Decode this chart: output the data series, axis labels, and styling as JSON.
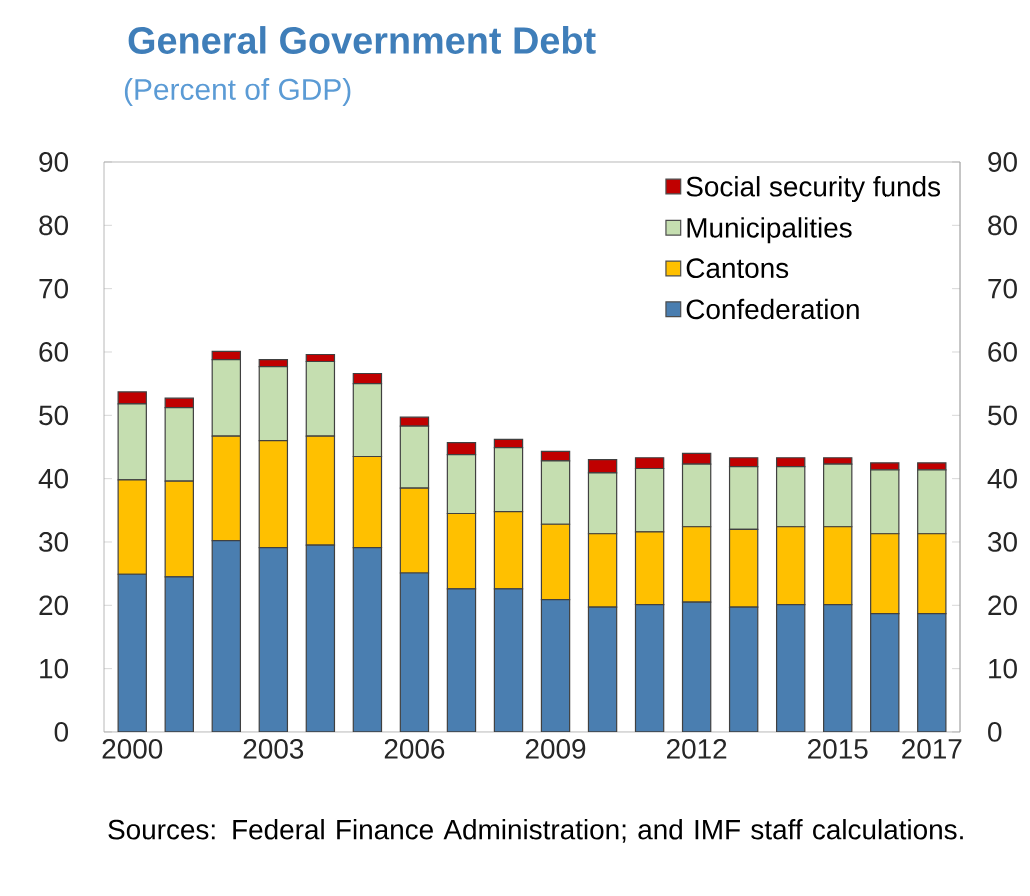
{
  "chart_data": {
    "type": "bar",
    "stacked": true,
    "title": "General Government Debt",
    "subtitle": "(Percent of GDP)",
    "categories": [
      "2000",
      null,
      null,
      "2003",
      null,
      null,
      "2006",
      null,
      null,
      "2009",
      null,
      null,
      "2012",
      null,
      null,
      "2015",
      null,
      "2017"
    ],
    "series": [
      {
        "name": "Confederation",
        "color": "#4a7eb0",
        "values": [
          24.9,
          24.5,
          30.2,
          29.1,
          29.5,
          29.1,
          25.1,
          22.6,
          22.6,
          20.9,
          19.7,
          20.1,
          20.5,
          19.7,
          20.1,
          20.1,
          18.7,
          18.7
        ]
      },
      {
        "name": "Cantons",
        "color": "#ffc000",
        "values": [
          14.9,
          15.1,
          16.5,
          16.9,
          17.2,
          14.4,
          13.4,
          11.9,
          12.2,
          11.9,
          11.6,
          11.5,
          11.9,
          12.3,
          12.3,
          12.3,
          12.6,
          12.6
        ]
      },
      {
        "name": "Municipalities",
        "color": "#c5deb0",
        "values": [
          12.0,
          11.6,
          12.1,
          11.7,
          11.8,
          11.5,
          9.8,
          9.3,
          10.1,
          10.0,
          9.6,
          10.0,
          9.9,
          9.9,
          9.5,
          9.9,
          10.1,
          10.1
        ]
      },
      {
        "name": "Social security funds",
        "color": "#c00000",
        "values": [
          1.9,
          1.5,
          1.3,
          1.1,
          1.1,
          1.6,
          1.4,
          1.9,
          1.3,
          1.5,
          2.1,
          1.7,
          1.7,
          1.4,
          1.4,
          1.0,
          1.1,
          1.1
        ]
      }
    ],
    "ylim": [
      0,
      90
    ],
    "yticks": [
      0,
      10,
      20,
      30,
      40,
      50,
      60,
      70,
      80,
      90
    ],
    "y2lim": [
      0,
      90
    ],
    "y2ticks": [
      0,
      10,
      20,
      30,
      40,
      50,
      60,
      70,
      80,
      90
    ],
    "legend": "top right",
    "grid": false,
    "annotations": [
      "Sources: Federal Finance Administration; and IMF staff calculations."
    ]
  }
}
